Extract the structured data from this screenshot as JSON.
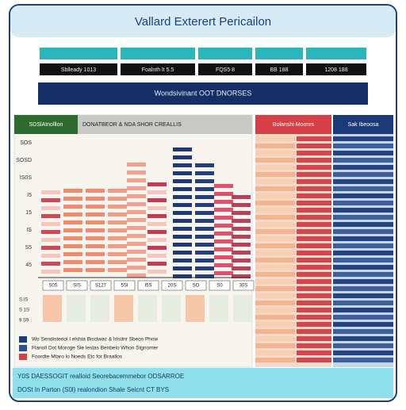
{
  "header": {
    "title": "Vallard Exterert Pericailon"
  },
  "summary": {
    "labels": [
      "",
      "",
      "",
      "",
      ""
    ],
    "values": [
      "Sblleady 1013",
      "Foalnth lt 5.5",
      "FQS5 8",
      "BB 188",
      "1208 188"
    ]
  },
  "banner": "Wondsivinant OOT DNORSES",
  "chart_panel": {
    "tag": "SDSlAtnolllon",
    "title": "DONATBEOR & NDA SHOR CREALLIS",
    "axis_labels": [
      "SOS",
      "SOSD",
      "IS0S",
      "I5",
      "15",
      "IS",
      "S5",
      "45"
    ],
    "column_labels": [
      "S0S",
      "SIS",
      "S127",
      "5SI",
      "I5S",
      "20S",
      "SO",
      "S0",
      "30S"
    ],
    "row_labels": [
      "S IS",
      "S 1S",
      "9 S9"
    ]
  },
  "side_columns": {
    "red_title": "Bolanshi Moonrs",
    "blue_title": "Sak Ibeoosa"
  },
  "legend": [
    "Wo Sendisteriol I elshia Bisclwac & Irlsdnr Sbeos Phow",
    "Flanoll Dot Moroge Sie lestas Benbelo Whon Stgnomer",
    "Foordte Mtaro lo Noeds Etc for Braallos"
  ],
  "footer": {
    "line1": "Y0S  DAESSOGIT realloid Seorebacemmebor ODSARROE",
    "line2": "DOSt In Parton (S0l) realondion Shale Seicnt CT BYS"
  }
}
